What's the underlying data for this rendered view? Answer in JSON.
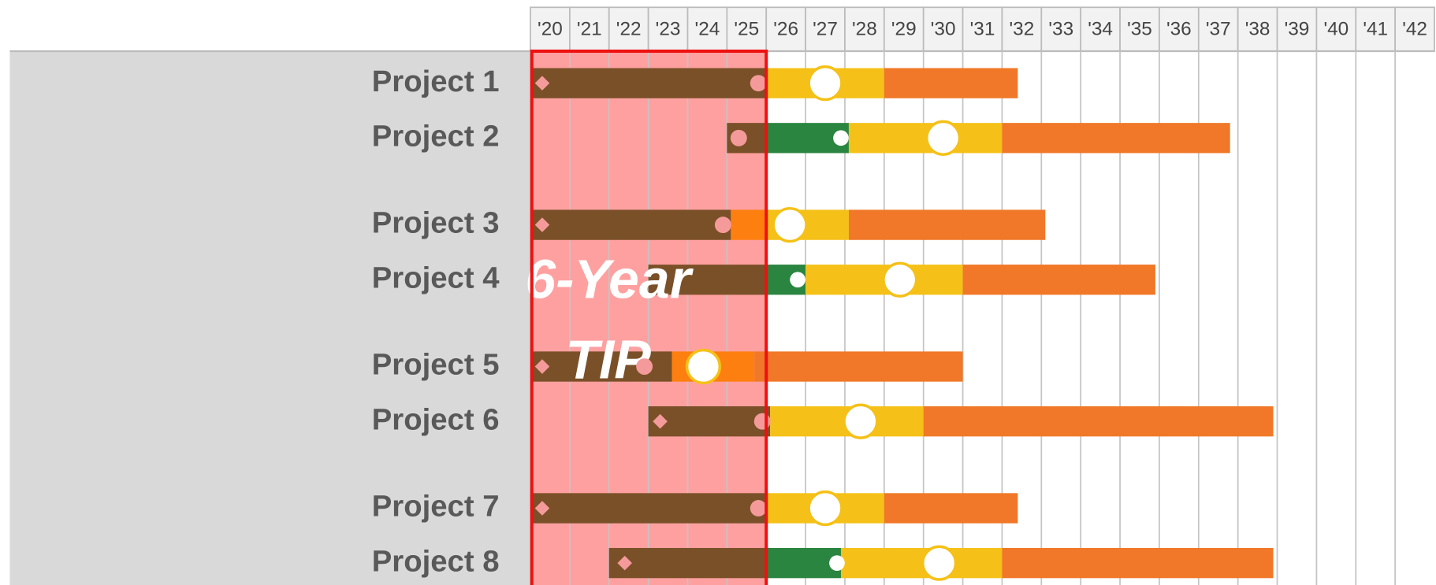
{
  "chart_data": {
    "type": "gantt",
    "xlim": [
      2020,
      2043
    ],
    "xticks": [
      {
        "value": 2020,
        "label": "'20"
      },
      {
        "value": 2021,
        "label": "'21"
      },
      {
        "value": 2022,
        "label": "'22"
      },
      {
        "value": 2023,
        "label": "'23"
      },
      {
        "value": 2024,
        "label": "'24"
      },
      {
        "value": 2025,
        "label": "'25"
      },
      {
        "value": 2026,
        "label": "'26"
      },
      {
        "value": 2027,
        "label": "'27"
      },
      {
        "value": 2028,
        "label": "'28"
      },
      {
        "value": 2029,
        "label": "'29"
      },
      {
        "value": 2030,
        "label": "'30"
      },
      {
        "value": 2031,
        "label": "'31"
      },
      {
        "value": 2032,
        "label": "'32"
      },
      {
        "value": 2033,
        "label": "'33"
      },
      {
        "value": 2034,
        "label": "'34"
      },
      {
        "value": 2035,
        "label": "'35"
      },
      {
        "value": 2036,
        "label": "'36"
      },
      {
        "value": 2037,
        "label": "'37"
      },
      {
        "value": 2038,
        "label": "'38"
      },
      {
        "value": 2039,
        "label": "'39"
      },
      {
        "value": 2040,
        "label": "'40"
      },
      {
        "value": 2041,
        "label": "'41"
      },
      {
        "value": 2042,
        "label": "'42"
      }
    ],
    "grid": true,
    "highlight": {
      "start": 2020,
      "end": 2026,
      "annotation": [
        "6-Year",
        "TIP"
      ],
      "color": "#ffa0a0",
      "border_color": "#ee1111"
    },
    "tasks": [
      {
        "name": "Project 1",
        "segments": [
          {
            "start": 2020,
            "end": 2026,
            "color": "#7a5028"
          },
          {
            "start": 2026,
            "end": 2029,
            "color": "#f5c118"
          },
          {
            "start": 2029,
            "end": 2032.4,
            "color": "#f07828"
          }
        ],
        "diamonds": [
          2020.3
        ],
        "dots": [
          2025.8
        ],
        "small_circles": [],
        "big_circles": [
          2027.5
        ]
      },
      {
        "name": "Project 2",
        "segments": [
          {
            "start": 2025,
            "end": 2026,
            "color": "#7a5028"
          },
          {
            "start": 2026,
            "end": 2028.1,
            "color": "#2a8540"
          },
          {
            "start": 2028.1,
            "end": 2032,
            "color": "#f5c118"
          },
          {
            "start": 2032,
            "end": 2037.8,
            "color": "#f07828"
          }
        ],
        "diamonds": [],
        "dots": [
          2025.3
        ],
        "small_circles": [
          2027.9
        ],
        "big_circles": [
          2030.5
        ]
      },
      {
        "name": "Project 3",
        "segments": [
          {
            "start": 2020,
            "end": 2025.1,
            "color": "#7a5028"
          },
          {
            "start": 2025.1,
            "end": 2026,
            "color": "#fd7f0f"
          },
          {
            "start": 2026,
            "end": 2028.1,
            "color": "#f5c118"
          },
          {
            "start": 2028.1,
            "end": 2033.1,
            "color": "#f07828"
          }
        ],
        "diamonds": [
          2020.3
        ],
        "dots": [
          2024.9
        ],
        "small_circles": [],
        "big_circles": [
          2026.6
        ]
      },
      {
        "name": "Project 4",
        "segments": [
          {
            "start": 2023,
            "end": 2026,
            "color": "#7a5028"
          },
          {
            "start": 2026,
            "end": 2027,
            "color": "#2a8540"
          },
          {
            "start": 2027,
            "end": 2031,
            "color": "#f5c118"
          },
          {
            "start": 2031,
            "end": 2035.9,
            "color": "#f07828"
          }
        ],
        "diamonds": [],
        "dots": [],
        "small_circles": [
          2026.8
        ],
        "big_circles": [
          2029.4
        ]
      },
      {
        "name": "Project 5",
        "segments": [
          {
            "start": 2020,
            "end": 2023.6,
            "color": "#7a5028"
          },
          {
            "start": 2023.6,
            "end": 2025.7,
            "color": "#fd7f0f"
          },
          {
            "start": 2025.7,
            "end": 2031,
            "color": "#f07828"
          }
        ],
        "diamonds": [
          2020.3
        ],
        "dots": [
          2022.9
        ],
        "small_circles": [],
        "big_circles": [
          2024.4
        ]
      },
      {
        "name": "Project 6",
        "segments": [
          {
            "start": 2023,
            "end": 2026.1,
            "color": "#7a5028"
          },
          {
            "start": 2026.1,
            "end": 2030,
            "color": "#f5c118"
          },
          {
            "start": 2030,
            "end": 2038.9,
            "color": "#f07828"
          }
        ],
        "diamonds": [
          2023.3
        ],
        "dots": [
          2025.9
        ],
        "small_circles": [],
        "big_circles": [
          2028.4
        ]
      },
      {
        "name": "Project 7",
        "segments": [
          {
            "start": 2020,
            "end": 2026,
            "color": "#7a5028"
          },
          {
            "start": 2026,
            "end": 2029,
            "color": "#f5c118"
          },
          {
            "start": 2029,
            "end": 2032.4,
            "color": "#f07828"
          }
        ],
        "diamonds": [
          2020.3
        ],
        "dots": [
          2025.8
        ],
        "small_circles": [],
        "big_circles": [
          2027.5
        ]
      },
      {
        "name": "Project 8",
        "segments": [
          {
            "start": 2022,
            "end": 2026,
            "color": "#7a5028"
          },
          {
            "start": 2026,
            "end": 2027.9,
            "color": "#2a8540"
          },
          {
            "start": 2027.9,
            "end": 2032,
            "color": "#f5c118"
          },
          {
            "start": 2032,
            "end": 2038.9,
            "color": "#f07828"
          }
        ],
        "diamonds": [
          2022.4
        ],
        "dots": [],
        "small_circles": [
          2027.8
        ],
        "big_circles": [
          2030.4
        ]
      }
    ]
  }
}
